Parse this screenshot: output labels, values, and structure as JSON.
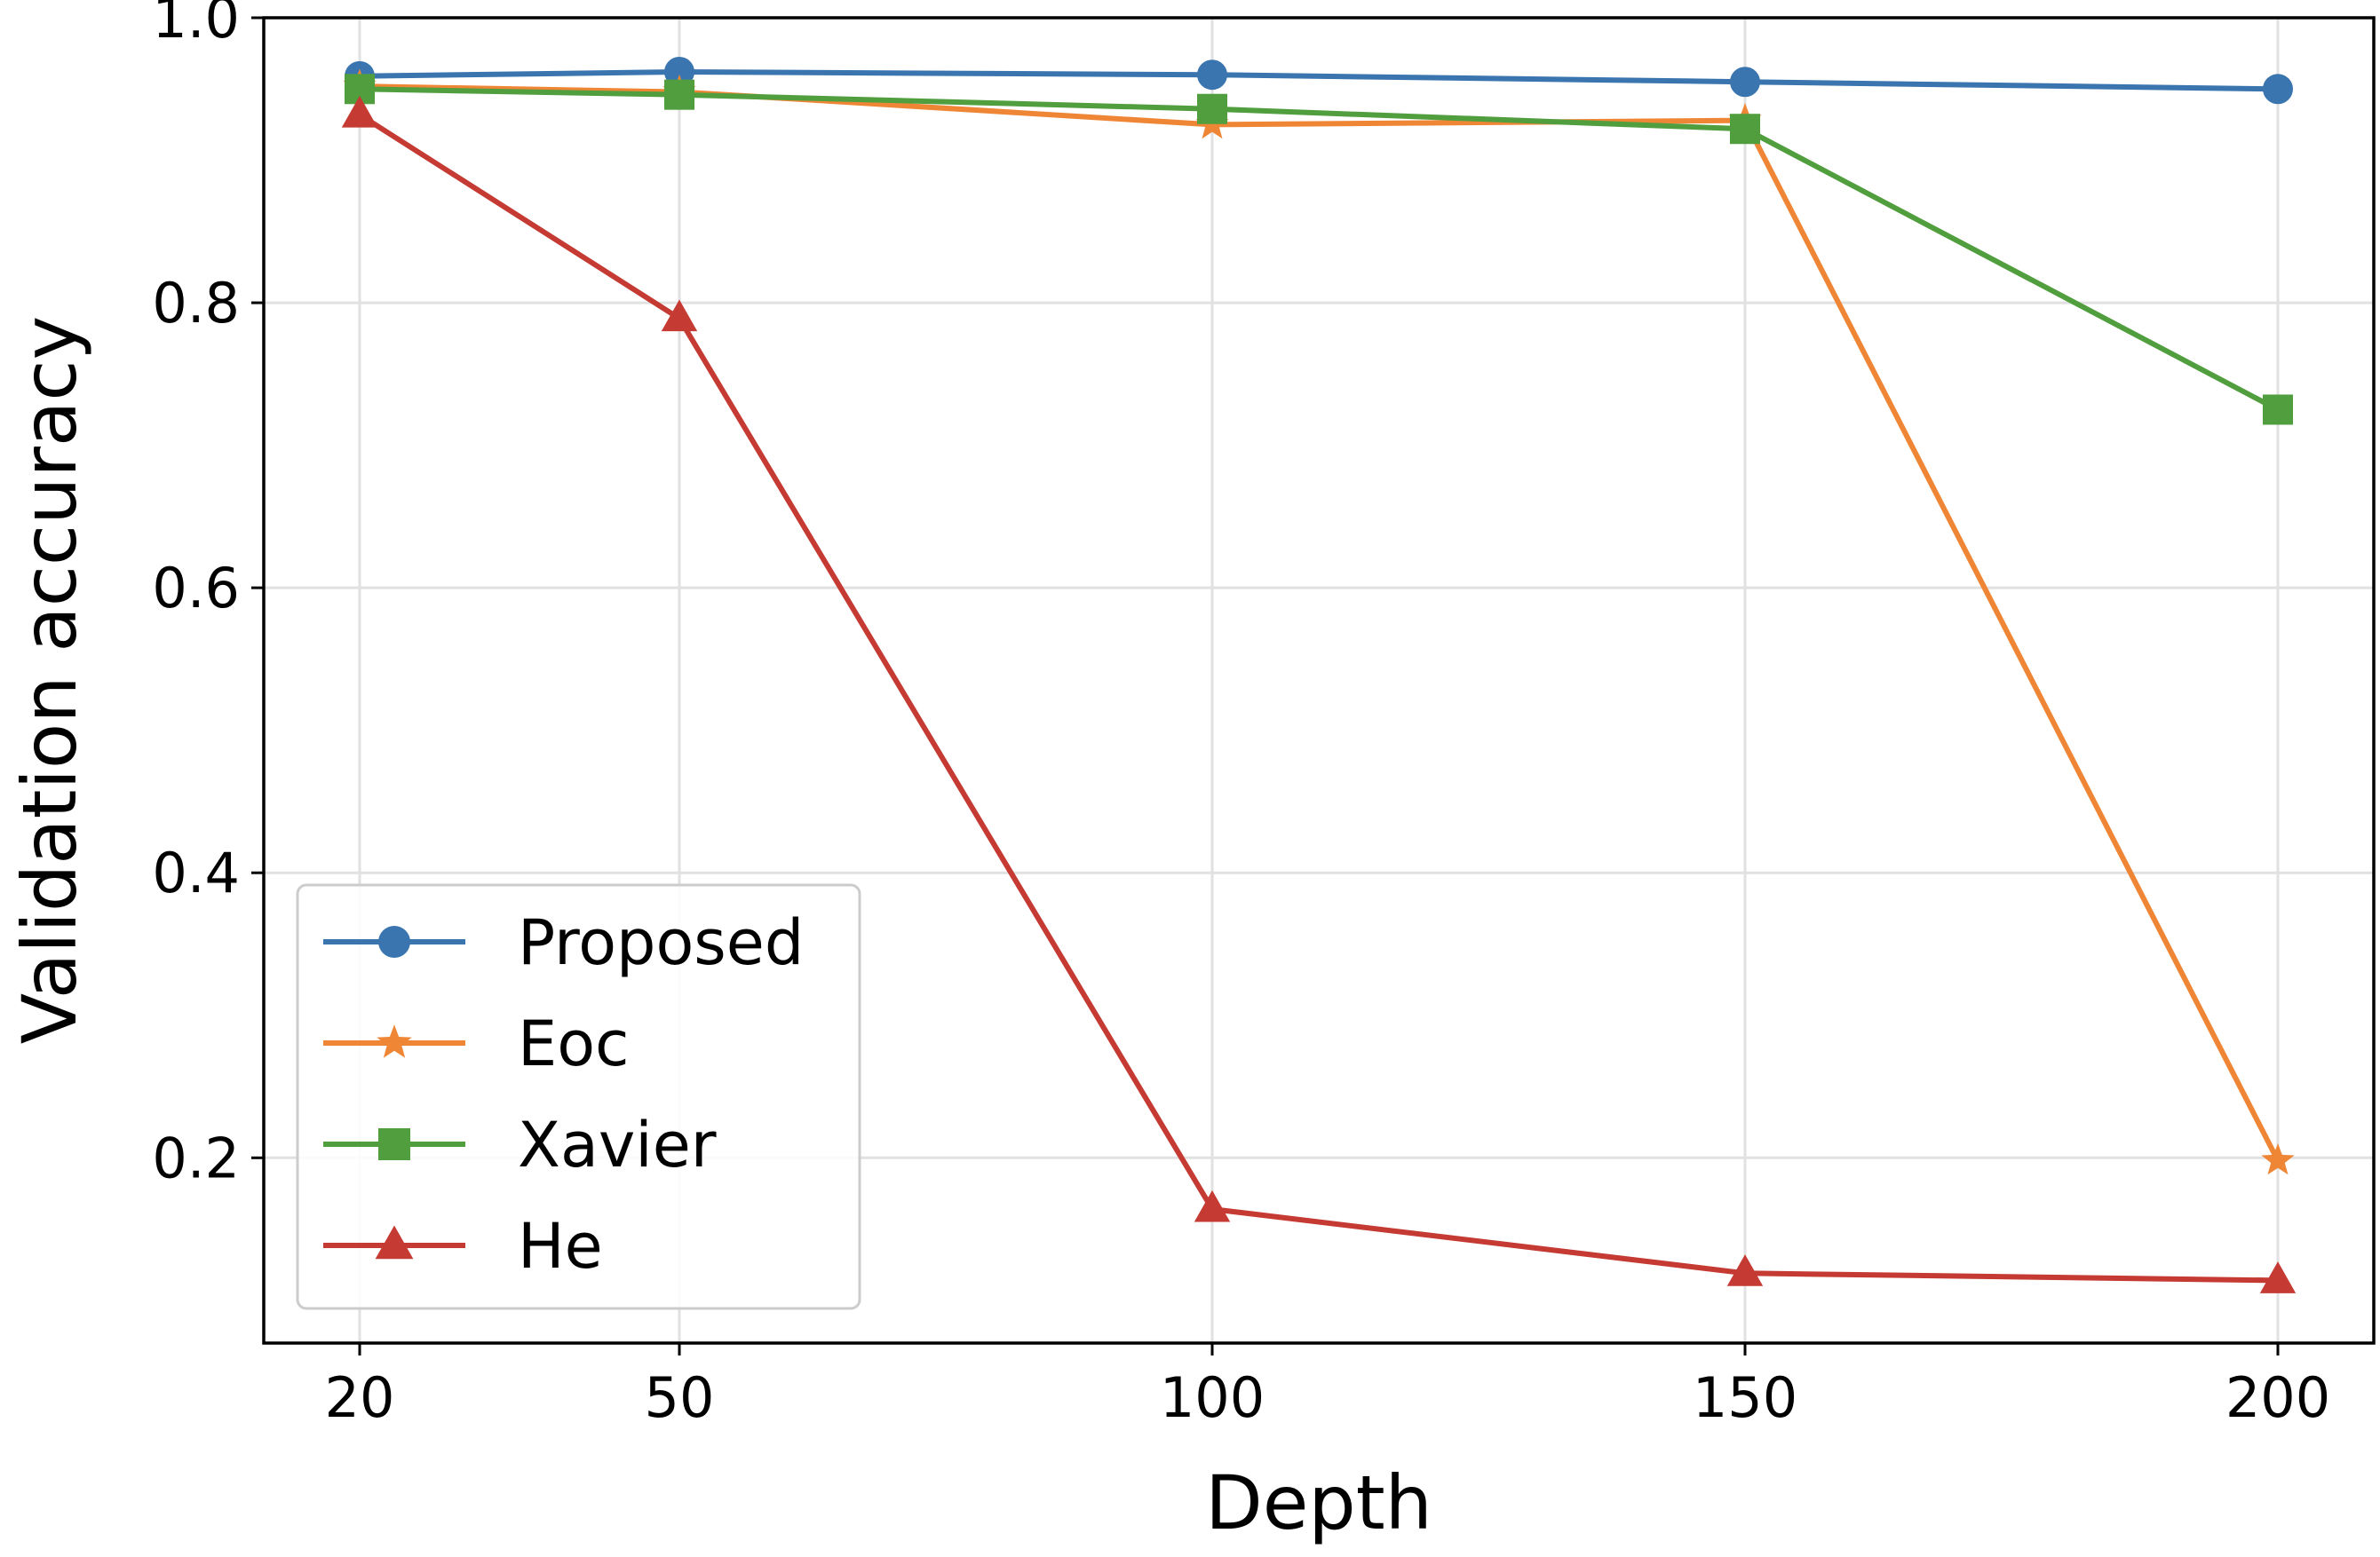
{
  "chart_data": {
    "type": "line",
    "title": "",
    "xlabel": "Depth",
    "ylabel": "Validation accuracy",
    "x": [
      20,
      50,
      100,
      150,
      200
    ],
    "x_ticks": [
      "20",
      "50",
      "100",
      "150",
      "200"
    ],
    "y_ticks": [
      "0.2",
      "0.4",
      "0.6",
      "0.8",
      "1.0"
    ],
    "xlim": [
      11,
      209
    ],
    "ylim": [
      0.07,
      1.0
    ],
    "grid": true,
    "legend_position": "lower-left",
    "series": [
      {
        "name": "Proposed",
        "color": "#3b75af",
        "marker": "circle",
        "values": [
          0.959,
          0.962,
          0.96,
          0.955,
          0.95
        ]
      },
      {
        "name": "Eoc",
        "color": "#ef8636",
        "marker": "star",
        "values": [
          0.952,
          0.948,
          0.925,
          0.928,
          0.198
        ]
      },
      {
        "name": "Xavier",
        "color": "#519e3e",
        "marker": "square",
        "values": [
          0.95,
          0.946,
          0.936,
          0.922,
          0.725
        ]
      },
      {
        "name": "He",
        "color": "#c53a32",
        "marker": "triangle",
        "values": [
          0.932,
          0.789,
          0.164,
          0.119,
          0.114
        ]
      }
    ]
  }
}
